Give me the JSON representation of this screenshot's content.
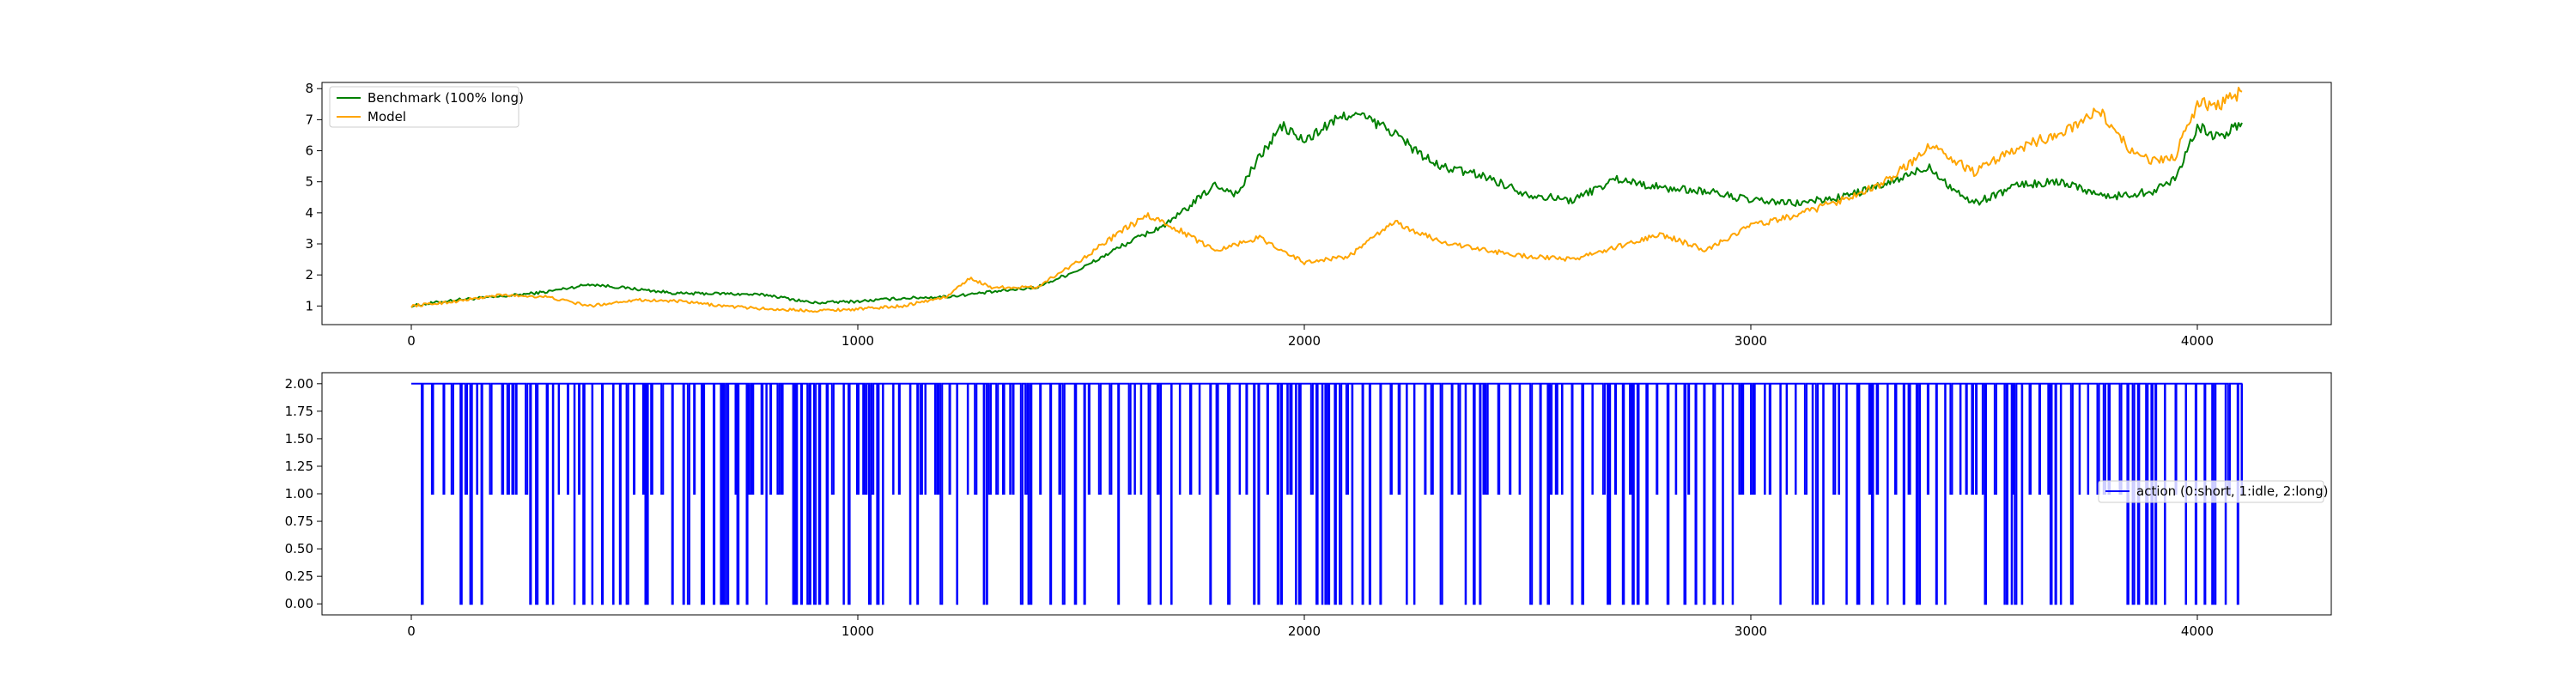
{
  "chart_data": [
    {
      "type": "line",
      "title": "",
      "xlabel": "",
      "ylabel": "",
      "xlim": [
        -200,
        4300
      ],
      "ylim": [
        0.4,
        8.2
      ],
      "xticks": [
        0,
        1000,
        2000,
        3000,
        4000
      ],
      "xtick_labels": [
        "0",
        "1000",
        "2000",
        "3000",
        "4000"
      ],
      "yticks": [
        1,
        2,
        3,
        4,
        5,
        6,
        7,
        8
      ],
      "ytick_labels": [
        "1",
        "2",
        "3",
        "4",
        "5",
        "6",
        "7",
        "8"
      ],
      "grid": false,
      "legend_position": "top-left",
      "series": [
        {
          "name": "Benchmark (100% long)",
          "color": "#008000",
          "x": [
            0,
            100,
            200,
            300,
            400,
            500,
            600,
            700,
            800,
            900,
            1000,
            1100,
            1200,
            1300,
            1400,
            1500,
            1600,
            1700,
            1800,
            1850,
            1900,
            1950,
            2000,
            2050,
            2100,
            2130,
            2200,
            2250,
            2300,
            2400,
            2500,
            2600,
            2700,
            2800,
            2900,
            3000,
            3100,
            3200,
            3300,
            3400,
            3450,
            3500,
            3600,
            3700,
            3800,
            3900,
            3950,
            4000,
            4050,
            4100
          ],
          "values": [
            1.0,
            1.2,
            1.3,
            1.45,
            1.7,
            1.55,
            1.4,
            1.4,
            1.35,
            1.1,
            1.15,
            1.25,
            1.3,
            1.45,
            1.6,
            2.2,
            3.0,
            3.7,
            4.9,
            4.6,
            5.8,
            6.8,
            6.3,
            6.8,
            7.2,
            7.1,
            6.6,
            6.0,
            5.5,
            5.2,
            4.6,
            4.4,
            5.1,
            4.8,
            4.7,
            4.4,
            4.3,
            4.5,
            4.9,
            5.5,
            4.8,
            4.3,
            4.9,
            5.0,
            4.5,
            4.7,
            5.1,
            6.8,
            6.4,
            6.9
          ]
        },
        {
          "name": "Model",
          "color": "#ffa500",
          "x": [
            0,
            100,
            200,
            300,
            400,
            500,
            600,
            700,
            800,
            900,
            1000,
            1100,
            1200,
            1250,
            1300,
            1400,
            1500,
            1600,
            1650,
            1700,
            1800,
            1900,
            2000,
            2100,
            2200,
            2300,
            2400,
            2500,
            2600,
            2700,
            2800,
            2900,
            3000,
            3100,
            3200,
            3300,
            3350,
            3400,
            3500,
            3600,
            3700,
            3780,
            3850,
            3900,
            3950,
            4000,
            4050,
            4100
          ],
          "values": [
            1.0,
            1.15,
            1.35,
            1.3,
            1.0,
            1.2,
            1.15,
            1.0,
            0.9,
            0.85,
            0.9,
            1.0,
            1.3,
            1.9,
            1.6,
            1.6,
            2.5,
            3.5,
            3.9,
            3.6,
            2.8,
            3.2,
            2.4,
            2.6,
            3.7,
            3.1,
            2.8,
            2.6,
            2.5,
            2.9,
            3.3,
            2.8,
            3.6,
            3.9,
            4.4,
            5.0,
            5.5,
            6.2,
            5.3,
            6.1,
            6.6,
            7.3,
            6.0,
            5.7,
            5.8,
            7.5,
            7.5,
            7.9
          ]
        }
      ]
    },
    {
      "type": "line",
      "title": "",
      "xlabel": "",
      "ylabel": "",
      "xlim": [
        -200,
        4300
      ],
      "ylim": [
        -0.1,
        2.1
      ],
      "xticks": [
        0,
        1000,
        2000,
        3000,
        4000
      ],
      "xtick_labels": [
        "0",
        "1000",
        "2000",
        "3000",
        "4000"
      ],
      "yticks": [
        0,
        0.25,
        0.5,
        0.75,
        1.0,
        1.25,
        1.5,
        1.75,
        2.0
      ],
      "ytick_labels": [
        "0.00",
        "0.25",
        "0.50",
        "0.75",
        "1.00",
        "1.25",
        "1.50",
        "1.75",
        "2.00"
      ],
      "grid": false,
      "legend_position": "center-right",
      "series": [
        {
          "name": "action (0:short, 1:idle, 2:long)",
          "color": "#0000ff",
          "drawstyle": "steps",
          "x_start": 0,
          "x_end": 4100,
          "values_domain": [
            0,
            1,
            2
          ],
          "dominant_value": 2
        }
      ]
    }
  ]
}
